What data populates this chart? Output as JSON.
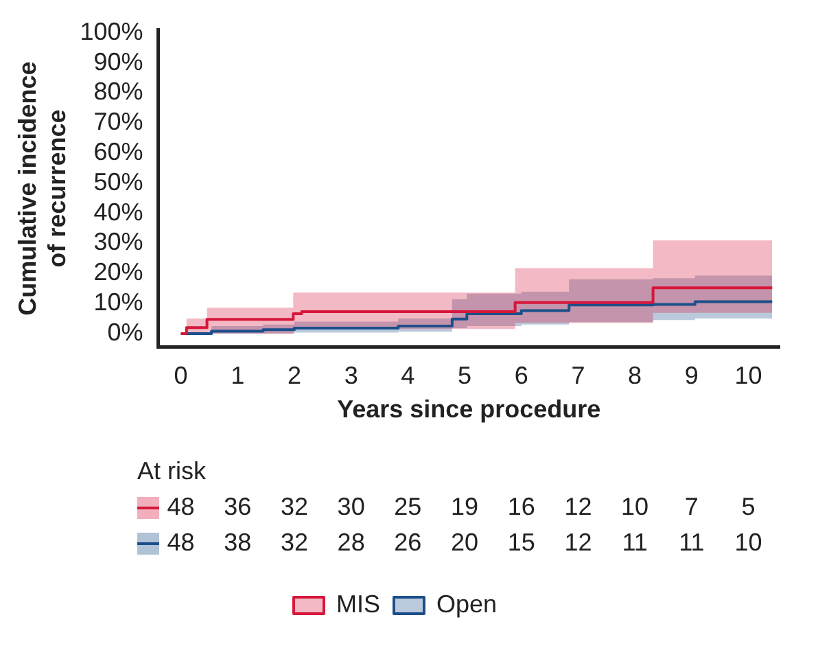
{
  "chart_data": {
    "type": "step",
    "xlabel": "Years since procedure",
    "ylabel": "Cumulative incidence of recurrence",
    "xlim": [
      -0.4,
      10.55
    ],
    "ylim": [
      -4.5,
      101
    ],
    "xticks": [
      0,
      1,
      2,
      3,
      4,
      5,
      6,
      7,
      8,
      9,
      10
    ],
    "yticks": [
      {
        "value": 0,
        "label": "0%"
      },
      {
        "value": 10,
        "label": "10%"
      },
      {
        "value": 20,
        "label": "20%"
      },
      {
        "value": 30,
        "label": "30%"
      },
      {
        "value": 40,
        "label": "40%"
      },
      {
        "value": 50,
        "label": "50%"
      },
      {
        "value": 60,
        "label": "60%"
      },
      {
        "value": 70,
        "label": "70%"
      },
      {
        "value": 80,
        "label": "80%"
      },
      {
        "value": 90,
        "label": "90%"
      },
      {
        "value": 100,
        "label": "100%"
      }
    ],
    "grid": false,
    "legend": "bottom",
    "series": [
      {
        "name": "MIS",
        "color": "#d6173b",
        "x": [
          0,
          0.1,
          0.46,
          1.98,
          2.13,
          5.89,
          8.32,
          10.42
        ],
        "values": [
          0,
          2,
          4.7,
          6.6,
          7.3,
          10.3,
          15.2,
          15.2
        ],
        "lower": [
          0,
          0,
          0,
          1.5,
          1.5,
          3.5,
          6.9,
          6.9
        ],
        "upper": [
          0,
          5,
          8.6,
          13.6,
          13.6,
          21.7,
          31,
          31
        ]
      },
      {
        "name": "Open",
        "color": "#1c4f8a",
        "x": [
          0,
          0.54,
          1.45,
          2.0,
          3.83,
          4.78,
          5.04,
          6.0,
          6.84,
          8.32,
          9.06,
          10.42
        ],
        "values": [
          0,
          0.8,
          1.3,
          1.8,
          2.5,
          4.8,
          6.6,
          7.6,
          9.5,
          9.7,
          10.6,
          10.6
        ],
        "lower": [
          0,
          0,
          0,
          0.3,
          0.6,
          1.8,
          2.5,
          3,
          3.8,
          4.5,
          5,
          5
        ],
        "upper": [
          0,
          2.5,
          3,
          4,
          5,
          11.4,
          13.3,
          13.9,
          18,
          18.4,
          19.3,
          19.3
        ]
      }
    ],
    "annotations": [
      "At risk",
      "48 36 32 30 25 19 16 12 10 7 5",
      "48 38 32 28 26 20 15 12 11 11 10"
    ]
  }
}
